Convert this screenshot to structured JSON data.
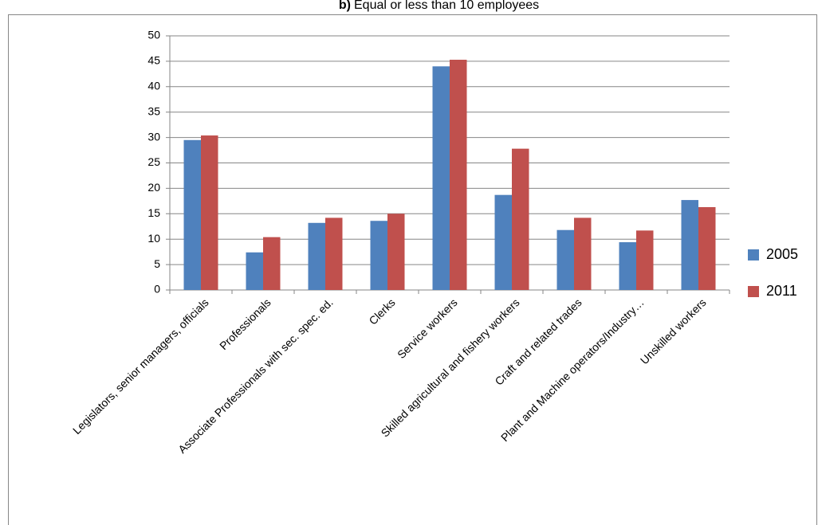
{
  "chart_data": {
    "type": "bar",
    "label": "b)",
    "title": "Equal or less than 10 employees",
    "categories": [
      "Legislators, senior managers, officials",
      "Professionals",
      "Associate Professionals with sec. spec. ed.",
      "Clerks",
      "Service workers",
      "Skilled agricultural and fishery workers",
      "Craft and related trades",
      "Plant and Machine operators/Industry…",
      "Unskilled workers"
    ],
    "series": [
      {
        "name": "2005",
        "color": "#4f81bd",
        "values": [
          29.5,
          7.4,
          13.2,
          13.6,
          44,
          18.7,
          11.8,
          9.4,
          17.7
        ]
      },
      {
        "name": "2011",
        "color": "#c0504d",
        "values": [
          30.4,
          10.4,
          14.2,
          15,
          45.3,
          27.8,
          14.2,
          11.7,
          16.3
        ]
      }
    ],
    "ylim": [
      0,
      50
    ],
    "yticks": [
      0,
      5,
      10,
      15,
      20,
      25,
      30,
      35,
      40,
      45,
      50
    ],
    "grid": true,
    "legend": "right"
  }
}
